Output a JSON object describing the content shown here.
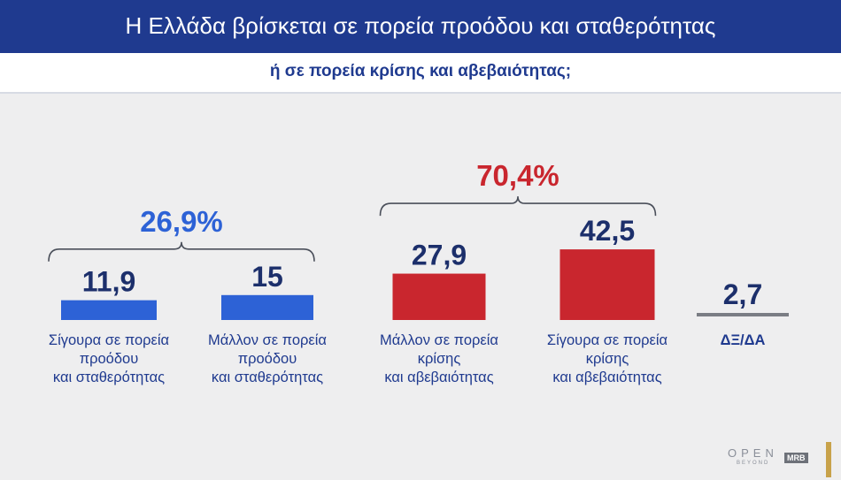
{
  "chart_data": {
    "type": "bar",
    "title": "Η Ελλάδα βρίσκεται σε πορεία προόδου και σταθερότητας",
    "subtitle": "ή σε πορεία κρίσης και αβεβαιότητας;",
    "categories": [
      [
        "Σίγουρα σε πορεία",
        "προόδου",
        "και σταθερότητας"
      ],
      [
        "Μάλλον σε πορεία",
        "προόδου",
        "και σταθερότητας"
      ],
      [
        "Μάλλον σε πορεία",
        "κρίσης",
        "και αβεβαιότητας"
      ],
      [
        "Σίγουρα σε πορεία",
        "κρίσης",
        "και αβεβαιότητας"
      ],
      [
        "ΔΞ/ΔΑ"
      ]
    ],
    "values": [
      11.9,
      15,
      27.9,
      42.5,
      2.7
    ],
    "value_labels": [
      "11,9",
      "15",
      "27,9",
      "42,5",
      "2,7"
    ],
    "colors": [
      "#2d62d6",
      "#2d62d6",
      "#c9262e",
      "#c9262e",
      "#7a7d84"
    ],
    "groups": [
      {
        "label": "26,9%",
        "members": [
          0,
          1
        ],
        "color": "#2d62d6"
      },
      {
        "label": "70,4%",
        "members": [
          2,
          3
        ],
        "color": "#c9262e"
      }
    ],
    "xlabel": "",
    "ylabel": ""
  },
  "branding": {
    "logo_text": "OPEN",
    "logo_sub": "BEYOND",
    "pollster": "MRB"
  }
}
